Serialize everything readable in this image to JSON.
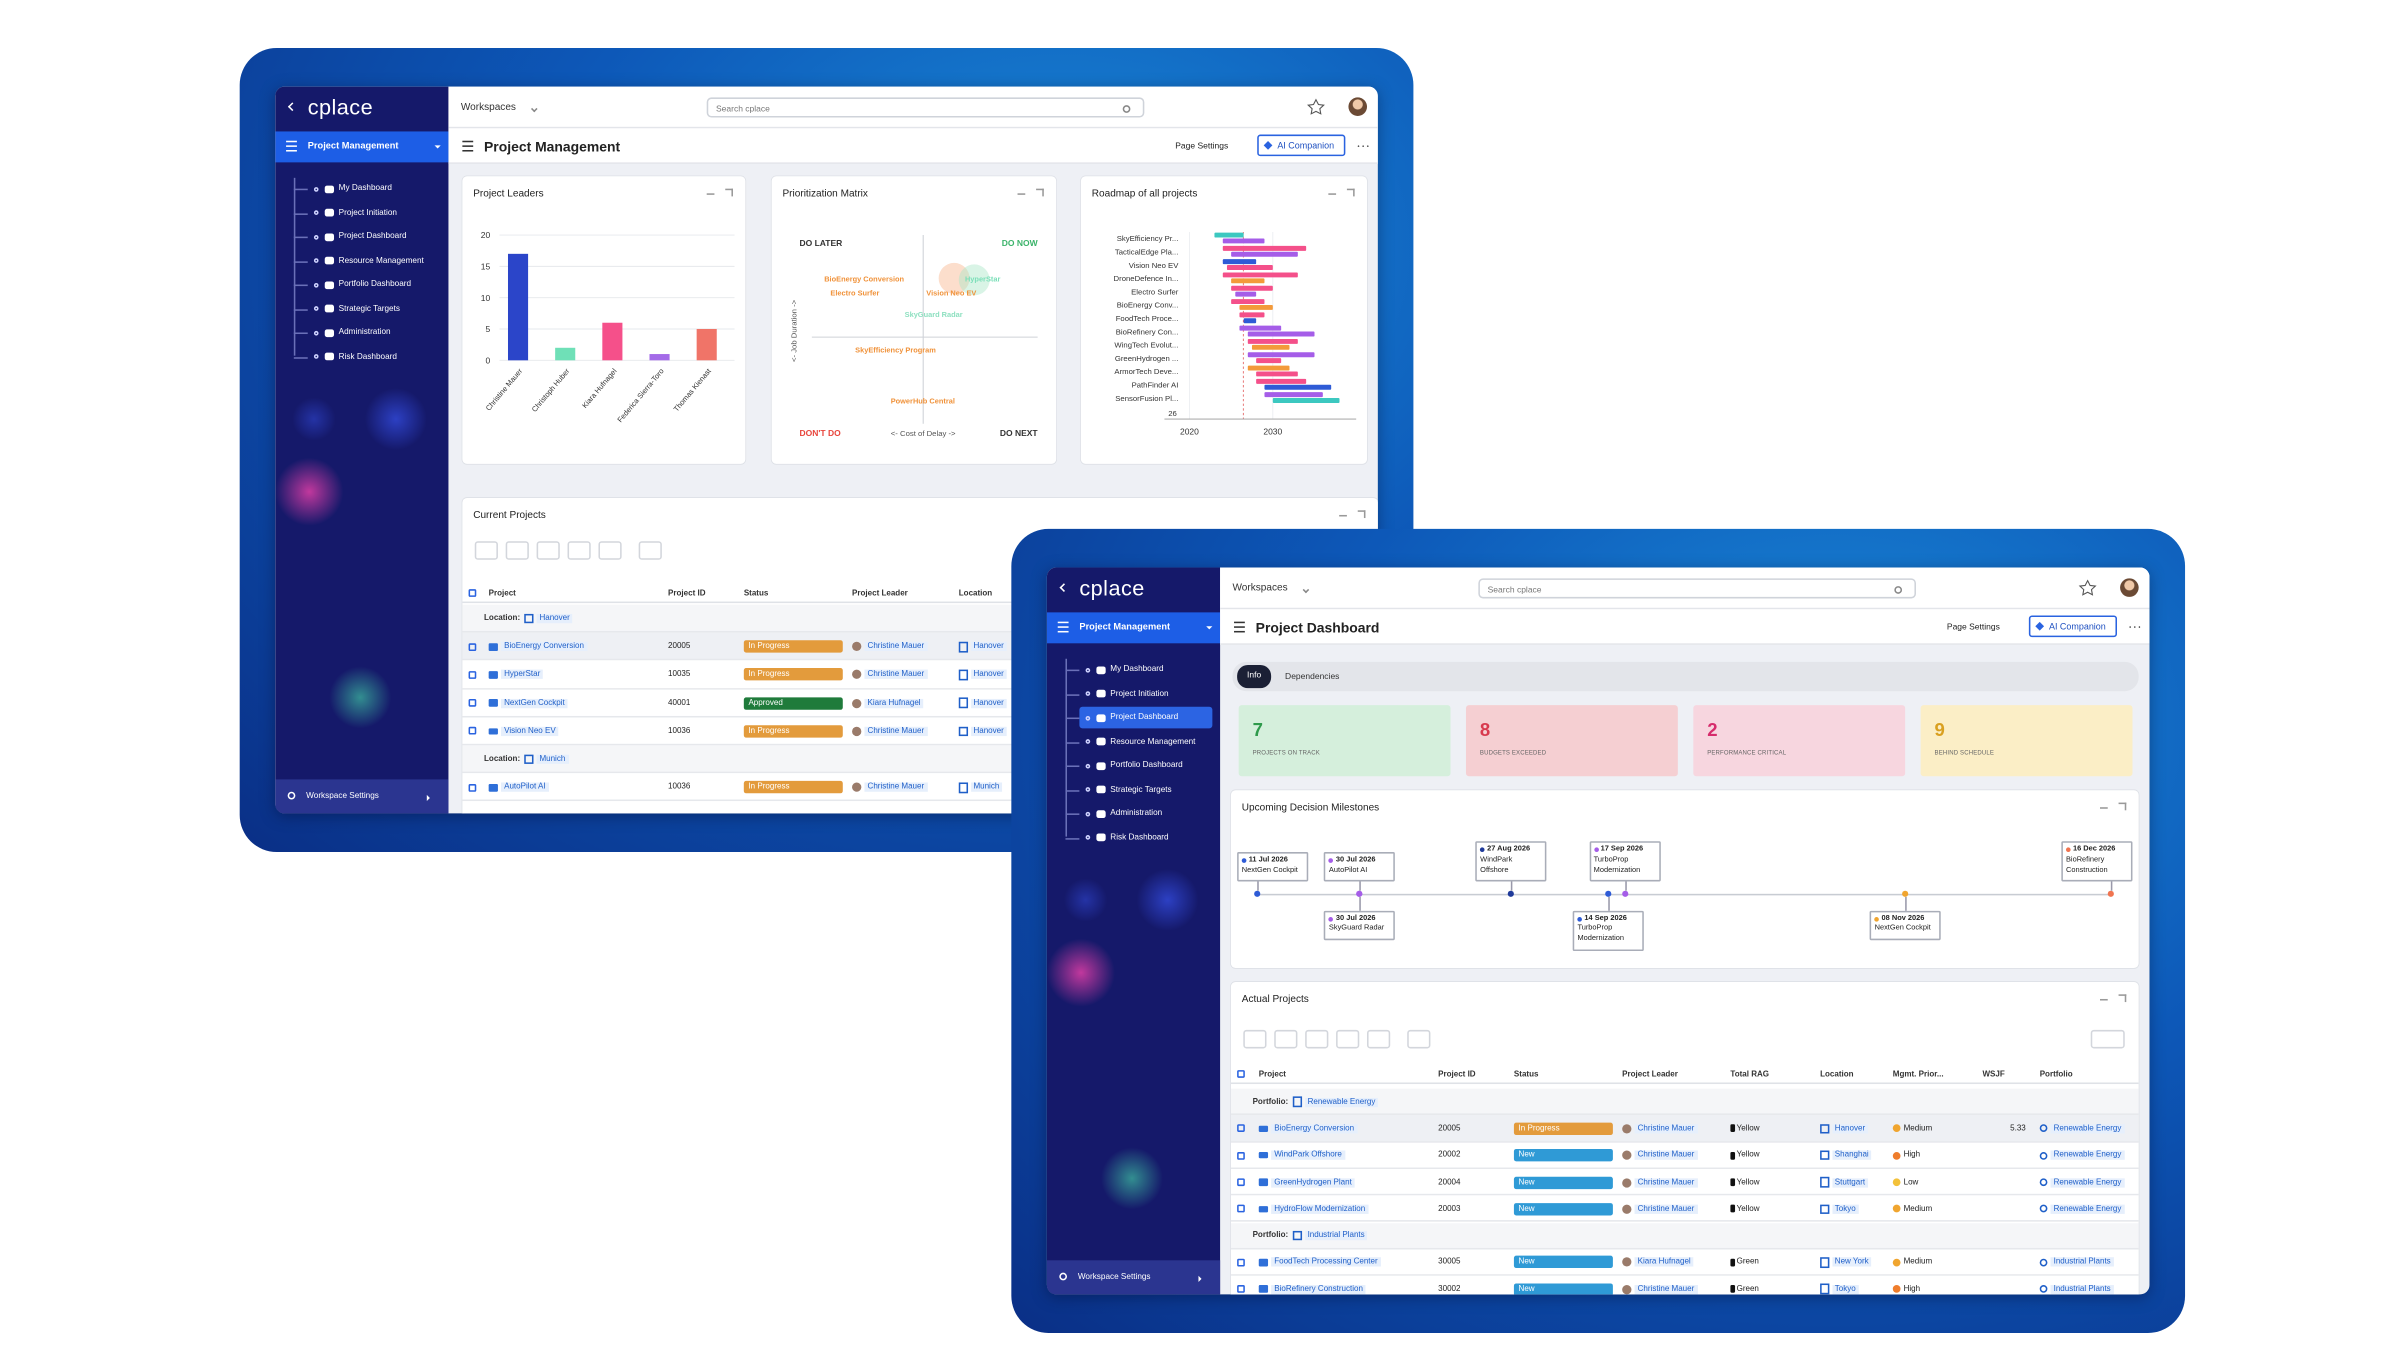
{
  "back": {
    "sidebar": {
      "logo": "cplace",
      "workspace": "Project Management",
      "nav": [
        "My Dashboard",
        "Project Initiation",
        "Project Dashboard",
        "Resource Management",
        "Portfolio Dashboard",
        "Strategic Targets",
        "Administration",
        "Risk Dashboard"
      ],
      "settings": "Workspace Settings"
    },
    "topbar": {
      "workspaces": "Workspaces",
      "search": "Search cplace"
    },
    "header": {
      "title": "Project Management",
      "page_settings": "Page Settings",
      "ai": "AI Companion"
    },
    "project_leaders": {
      "title": "Project Leaders",
      "categories": [
        "Christine Mauer",
        "Christoph Huber",
        "Kiara Hufnagel",
        "Federica Sierra-Toro",
        "Thomas Kienast"
      ],
      "values": [
        17,
        2,
        6,
        1,
        5
      ],
      "colors": [
        "#2b45c9",
        "#6fe0b7",
        "#f5508a",
        "#a46be8",
        "#f07468"
      ],
      "ylim": [
        0,
        20
      ],
      "yticks": [
        0,
        5,
        10,
        15,
        20
      ]
    },
    "matrix": {
      "title": "Prioritization Matrix",
      "quadrants": [
        "DO LATER",
        "DO NOW",
        "DON'T DO",
        "DO NEXT"
      ],
      "y_label": "<- Job Duration ->",
      "x_label": "<- Cost of Delay ->",
      "items": [
        {
          "label": "BioEnergy Conversion",
          "color": "#f0923a"
        },
        {
          "label": "Electro Surfer",
          "color": "#f0923a"
        },
        {
          "label": "Vision Neo EV",
          "color": "#f0923a"
        },
        {
          "label": "HyperStar",
          "color": "#7adfb8"
        },
        {
          "label": "SkyGuard Radar",
          "color": "#8ee0c0"
        },
        {
          "label": "SkyEfficiency Program",
          "color": "#f0923a"
        },
        {
          "label": "PowerHub Central",
          "color": "#f0923a"
        }
      ]
    },
    "roadmap": {
      "title": "Roadmap of all projects",
      "xlim": [
        2017,
        2040
      ],
      "xticks": [
        2020,
        2030
      ],
      "footer_label": "26",
      "projects": [
        {
          "name": "SkyEfficiency Pr...",
          "bars": [
            {
              "start": 2023,
              "end": 2026.5,
              "color": "#3cc8c0"
            },
            {
              "start": 2024,
              "end": 2029,
              "color": "#a55de8"
            }
          ]
        },
        {
          "name": "TacticalEdge Pla...",
          "bars": [
            {
              "start": 2024,
              "end": 2034,
              "color": "#f4508a"
            },
            {
              "start": 2025,
              "end": 2033,
              "color": "#a55de8"
            }
          ]
        },
        {
          "name": "Vision Neo EV",
          "bars": [
            {
              "start": 2024,
              "end": 2028,
              "color": "#2e5bd6"
            },
            {
              "start": 2024.5,
              "end": 2030,
              "color": "#f4508a"
            }
          ]
        },
        {
          "name": "DroneDefence In...",
          "bars": [
            {
              "start": 2024,
              "end": 2033,
              "color": "#f4508a"
            },
            {
              "start": 2025,
              "end": 2029,
              "color": "#f39a3a"
            }
          ]
        },
        {
          "name": "Electro Surfer",
          "bars": [
            {
              "start": 2025,
              "end": 2030,
              "color": "#f4508a"
            },
            {
              "start": 2025.5,
              "end": 2028,
              "color": "#a55de8"
            }
          ]
        },
        {
          "name": "BioEnergy Conv...",
          "bars": [
            {
              "start": 2025,
              "end": 2029,
              "color": "#f4508a"
            },
            {
              "start": 2026,
              "end": 2030,
              "color": "#f39a3a"
            }
          ]
        },
        {
          "name": "FoodTech Proce...",
          "bars": [
            {
              "start": 2026,
              "end": 2029,
              "color": "#f4508a"
            },
            {
              "start": 2026.5,
              "end": 2028,
              "color": "#2e5bd6"
            }
          ]
        },
        {
          "name": "BioRefinery Con...",
          "bars": [
            {
              "start": 2026,
              "end": 2031,
              "color": "#a55de8"
            },
            {
              "start": 2027,
              "end": 2035,
              "color": "#a55de8"
            }
          ]
        },
        {
          "name": "WingTech Evolut...",
          "bars": [
            {
              "start": 2027,
              "end": 2033,
              "color": "#f4508a"
            },
            {
              "start": 2027.5,
              "end": 2032,
              "color": "#f39a3a"
            }
          ]
        },
        {
          "name": "GreenHydrogen ...",
          "bars": [
            {
              "start": 2027,
              "end": 2035,
              "color": "#a55de8"
            },
            {
              "start": 2028,
              "end": 2031,
              "color": "#f4508a"
            }
          ]
        },
        {
          "name": "ArmorTech Deve...",
          "bars": [
            {
              "start": 2027,
              "end": 2032,
              "color": "#f39a3a"
            },
            {
              "start": 2028,
              "end": 2033,
              "color": "#f4508a"
            }
          ]
        },
        {
          "name": "PathFinder AI",
          "bars": [
            {
              "start": 2028,
              "end": 2034,
              "color": "#f4508a"
            },
            {
              "start": 2029,
              "end": 2037,
              "color": "#2e5bd6"
            }
          ]
        },
        {
          "name": "SensorFusion Pl...",
          "bars": [
            {
              "start": 2029,
              "end": 2036,
              "color": "#a55de8"
            },
            {
              "start": 2030,
              "end": 2038,
              "color": "#3cc8c0"
            }
          ]
        }
      ]
    },
    "current_projects": {
      "title": "Current Projects",
      "columns": [
        "Project",
        "Project ID",
        "Status",
        "Project Leader",
        "Location"
      ],
      "groups": [
        {
          "label": "Location:",
          "value": "Hanover",
          "rows": [
            {
              "project": "BioEnergy Conversion",
              "id": 20005,
              "status": "In Progress",
              "status_color": "#e39b3c",
              "leader": "Christine Mauer",
              "location": "Hanover"
            },
            {
              "project": "HyperStar",
              "id": 10035,
              "status": "In Progress",
              "status_color": "#e39b3c",
              "leader": "Christine Mauer",
              "location": "Hanover"
            },
            {
              "project": "NextGen Cockpit",
              "id": 40001,
              "status": "Approved",
              "status_color": "#1f7b3b",
              "leader": "Kiara Hufnagel",
              "location": "Hanover"
            },
            {
              "project": "Vision Neo EV",
              "id": 10036,
              "status": "In Progress",
              "status_color": "#e39b3c",
              "leader": "Christine Mauer",
              "location": "Hanover"
            }
          ]
        },
        {
          "label": "Location:",
          "value": "Munich",
          "rows": [
            {
              "project": "AutoPilot AI",
              "id": 10036,
              "status": "In Progress",
              "status_color": "#e39b3c",
              "leader": "Christine Mauer",
              "location": "Munich"
            }
          ]
        }
      ]
    }
  },
  "front": {
    "sidebar": {
      "logo": "cplace",
      "workspace": "Project Management",
      "nav": [
        "My Dashboard",
        "Project Initiation",
        "Project Dashboard",
        "Resource Management",
        "Portfolio Dashboard",
        "Strategic Targets",
        "Administration",
        "Risk Dashboard"
      ],
      "settings": "Workspace Settings"
    },
    "topbar": {
      "workspaces": "Workspaces",
      "search": "Search cplace"
    },
    "header": {
      "title": "Project Dashboard",
      "page_settings": "Page Settings",
      "ai": "AI Companion"
    },
    "tabs": [
      "Info",
      "Dependencies"
    ],
    "kpis": [
      {
        "value": 7,
        "label": "PROJECTS ON TRACK",
        "bg": "#d5efdc",
        "color": "#2f9a4c"
      },
      {
        "value": 8,
        "label": "BUDGETS EXCEEDED",
        "bg": "#f5cfd2",
        "color": "#d83a4e"
      },
      {
        "value": 2,
        "label": "PERFORMANCE CRITICAL",
        "bg": "#f7d6df",
        "color": "#d62c6c"
      },
      {
        "value": 9,
        "label": "BEHIND SCHEDULE",
        "bg": "#fbeec6",
        "color": "#d9a020"
      }
    ],
    "milestones": {
      "title": "Upcoming Decision Milestones",
      "above": [
        {
          "date": "11 Jul 2026",
          "name": "NextGen Cockpit",
          "color": "#2e5bd6"
        },
        {
          "date": "30 Jul 2026",
          "name": "AutoPilot AI",
          "color": "#a55de8"
        },
        {
          "date": "27 Aug 2026",
          "name": "WindPark Offshore",
          "color": "#1f3a9a"
        },
        {
          "date": "17 Sep 2026",
          "name": "TurboProp Modernization",
          "color": "#a55de8"
        },
        {
          "date": "16 Dec 2026",
          "name": "BioRefinery Construction",
          "color": "#f07450"
        }
      ],
      "below": [
        {
          "date": "30 Jul 2026",
          "name": "SkyGuard Radar",
          "color": "#a55de8"
        },
        {
          "date": "14 Sep 2026",
          "name": "TurboProp Modernization",
          "color": "#2e5bd6"
        },
        {
          "date": "08 Nov 2026",
          "name": "NextGen Cockpit",
          "color": "#f0a52f"
        }
      ]
    },
    "actual_projects": {
      "title": "Actual Projects",
      "columns": [
        "Project",
        "Project ID",
        "Status",
        "Project Leader",
        "Total RAG",
        "Location",
        "Mgmt. Prior...",
        "WSJF",
        "Portfolio"
      ],
      "groups": [
        {
          "label": "Portfolio:",
          "value": "Renewable Energy",
          "rows": [
            {
              "project": "BioEnergy Conversion",
              "id": 20005,
              "status": "In Progress",
              "status_color": "#e39b3c",
              "leader": "Christine Mauer",
              "rag": "Yellow",
              "location": "Hanover",
              "priority": "Medium",
              "priority_color": "#f0a52f",
              "wsjf": 5.33,
              "portfolio": "Renewable Energy"
            },
            {
              "project": "WindPark Offshore",
              "id": 20002,
              "status": "New",
              "status_color": "#2f9ad6",
              "leader": "Christine Mauer",
              "rag": "Yellow",
              "location": "Shanghai",
              "priority": "High",
              "priority_color": "#ef7d2c",
              "portfolio": "Renewable Energy"
            },
            {
              "project": "GreenHydrogen Plant",
              "id": 20004,
              "status": "New",
              "status_color": "#2f9ad6",
              "leader": "Christine Mauer",
              "rag": "Yellow",
              "location": "Stuttgart",
              "priority": "Low",
              "priority_color": "#f3c13a",
              "portfolio": "Renewable Energy"
            },
            {
              "project": "HydroFlow Modernization",
              "id": 20003,
              "status": "New",
              "status_color": "#2f9ad6",
              "leader": "Christine Mauer",
              "rag": "Yellow",
              "location": "Tokyo",
              "priority": "Medium",
              "priority_color": "#f0a52f",
              "portfolio": "Renewable Energy"
            }
          ]
        },
        {
          "label": "Portfolio:",
          "value": "Industrial Plants",
          "rows": [
            {
              "project": "FoodTech Processing Center",
              "id": 30005,
              "status": "New",
              "status_color": "#2f9ad6",
              "leader": "Kiara Hufnagel",
              "rag": "Green",
              "location": "New York",
              "priority": "Medium",
              "priority_color": "#f0a52f",
              "portfolio": "Industrial Plants"
            },
            {
              "project": "BioRefinery Construction",
              "id": 30002,
              "status": "New",
              "status_color": "#2f9ad6",
              "leader": "Christine Mauer",
              "rag": "Green",
              "location": "Tokyo",
              "priority": "High",
              "priority_color": "#ef7d2c",
              "portfolio": "Industrial Plants"
            }
          ]
        }
      ]
    }
  }
}
